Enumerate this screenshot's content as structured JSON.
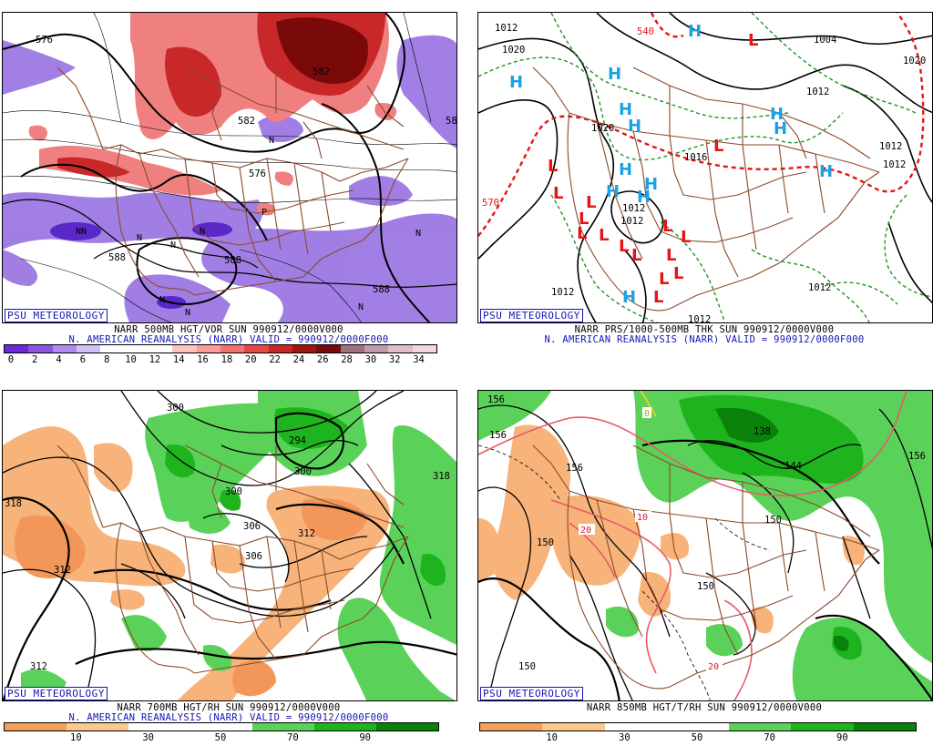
{
  "brand": "PSU METEOROLOGY",
  "colors": {
    "map_border": "#8b4a2b",
    "title_blue": "#1414b4",
    "high": "#1ea0e6",
    "low": "#e61414",
    "thickness": "#e61414",
    "dashed_green": "#1e961e"
  },
  "panels": [
    {
      "id": "vorticity",
      "title_line": "NARR 500MB HGT/VOR SUN 990912/0000V000",
      "valid_line": "N. AMERICAN REANALYSIS (NARR) VALID = 990912/0000F000",
      "colorbar": {
        "labels": [
          "0",
          "2",
          "4",
          "6",
          "8",
          "10",
          "12",
          "14",
          "16",
          "18",
          "20",
          "22",
          "24",
          "26",
          "28",
          "30",
          "32",
          "34"
        ],
        "colors": [
          "#6a2bd9",
          "#8d55e6",
          "#b08af0",
          "#d4c0f8",
          "#ffffff",
          "#ffffff",
          "#ffffff",
          "#ffc0c0",
          "#ff9a9a",
          "#f57070",
          "#e64848",
          "#c82828",
          "#a01414",
          "#780a0a",
          "#a07080",
          "#c09aa8",
          "#e0bcc8",
          "#f0d8e0"
        ]
      },
      "contour_labels": [
        "576",
        "582",
        "588",
        "588",
        "588",
        "576",
        "582",
        "58"
      ],
      "markers": [
        {
          "text": "N"
        },
        {
          "text": "NN"
        },
        {
          "text": "N"
        },
        {
          "text": "N"
        },
        {
          "text": "N"
        },
        {
          "text": "N"
        },
        {
          "text": "N"
        },
        {
          "text": "N"
        },
        {
          "text": "P"
        },
        {
          "text": "N"
        }
      ]
    },
    {
      "id": "pressure",
      "title_line": "NARR PRS/1000-500MB THK SUN 990912/0000V000",
      "valid_line": "N. AMERICAN REANALYSIS (NARR) VALID = 990912/0000F000",
      "contour_labels": [
        "1012",
        "1020",
        "1004",
        "1020",
        "1012",
        "1012",
        "1012",
        "1020",
        "1016",
        "1012",
        "1012",
        "1012",
        "1012",
        "1012",
        "570",
        "540"
      ],
      "highs": [
        "H",
        "H",
        "H",
        "H",
        "H",
        "H",
        "H",
        "H",
        "H",
        "H",
        "H",
        "H",
        "H"
      ],
      "lows": [
        "L",
        "L",
        "L",
        "L",
        "L",
        "L",
        "L",
        "L",
        "L",
        "L",
        "L",
        "L",
        "L",
        "L",
        "L",
        "L"
      ]
    },
    {
      "id": "rh700",
      "title_line": "NARR 700MB HGT/RH SUN 990912/0000V000",
      "valid_line": "N. AMERICAN REANALYSIS (NARR) VALID = 990912/0000F000",
      "colorbar": {
        "labels": [
          "10",
          "30",
          "50",
          "70",
          "90"
        ],
        "colors": [
          "#f5a05a",
          "#fbc890",
          "#ffffff",
          "#ffffff",
          "#5ad25a",
          "#1eb41e",
          "#0a820a"
        ]
      },
      "contour_labels": [
        "318",
        "312",
        "312",
        "300",
        "294",
        "300",
        "306",
        "312",
        "318",
        "306",
        "300"
      ]
    },
    {
      "id": "rh850",
      "title_line": "NARR 850MB HGT/T/RH SUN 990912/0000V000",
      "colorbar": {
        "labels": [
          "10",
          "30",
          "50",
          "70",
          "90"
        ],
        "colors": [
          "#f5a05a",
          "#fbc890",
          "#ffffff",
          "#ffffff",
          "#5ad25a",
          "#1eb41e",
          "#0a820a"
        ]
      },
      "contour_labels": [
        "156",
        "156",
        "156",
        "150",
        "150",
        "144",
        "138",
        "150",
        "150",
        "156",
        "10",
        "20",
        "20",
        "0"
      ]
    }
  ]
}
